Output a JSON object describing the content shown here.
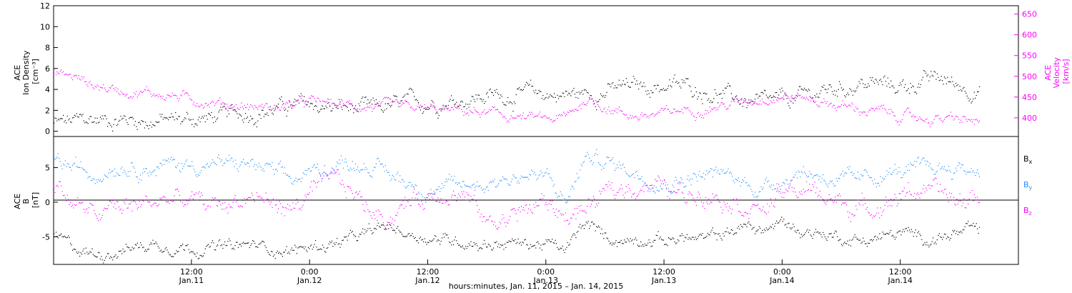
{
  "chart_data": [
    {
      "type": "scatter",
      "panel": "top",
      "ylabel_lines": [
        "ACE",
        "Ion Density",
        "[cm⁻³]"
      ],
      "y2label_lines": [
        "ACE",
        "Velocity",
        "[km/s]"
      ],
      "xlim": [
        -14,
        84
      ],
      "ylim": [
        -0.5,
        12
      ],
      "yticks": [
        0,
        2,
        4,
        6,
        8,
        10,
        12
      ],
      "y2lim": [
        355,
        670
      ],
      "y2ticks": [
        400,
        450,
        500,
        550,
        600,
        650
      ],
      "grid": false,
      "colors": {
        "density": "#000000",
        "velocity": "#ff00ff"
      },
      "series": [
        {
          "axis": "left",
          "color": "#000000",
          "spread": 0.9,
          "x": [
            -14,
            -12,
            -10,
            -8,
            -6,
            -4,
            -2,
            0,
            2,
            4,
            6,
            8,
            10,
            12,
            14,
            16,
            18,
            20,
            22,
            24,
            26,
            28,
            30,
            32,
            34,
            36,
            38,
            40,
            42,
            44,
            46,
            48,
            50,
            52,
            54,
            56,
            58,
            60,
            62,
            64,
            66,
            68,
            70,
            72,
            74,
            76,
            78,
            80
          ],
          "y": [
            0.8,
            0.9,
            1.1,
            1.2,
            1.2,
            1.0,
            1.1,
            1.2,
            1.3,
            1.5,
            1.9,
            2.1,
            2.4,
            2.5,
            2.3,
            2.2,
            2.0,
            2.3,
            2.6,
            2.8,
            3.0,
            3.2,
            3.4,
            3.5,
            3.6,
            3.6,
            3.5,
            3.6,
            3.9,
            4.2,
            4.3,
            4.4,
            4.3,
            4.0,
            3.5,
            3.0,
            2.6,
            2.8,
            3.3,
            3.8,
            4.2,
            4.6,
            4.5,
            4.3,
            4.8,
            5.0,
            4.4,
            4.0
          ]
        },
        {
          "axis": "right",
          "color": "#ff00ff",
          "spread": 14,
          "x": [
            -14,
            -12,
            -10,
            -8,
            -6,
            -4,
            -2,
            0,
            2,
            4,
            6,
            8,
            10,
            12,
            14,
            16,
            18,
            20,
            22,
            24,
            26,
            28,
            30,
            32,
            34,
            36,
            38,
            40,
            42,
            44,
            46,
            48,
            50,
            52,
            54,
            56,
            58,
            60,
            62,
            64,
            66,
            68,
            70,
            72,
            74,
            76,
            78,
            80
          ],
          "y": [
            510,
            500,
            480,
            470,
            465,
            460,
            455,
            445,
            440,
            432,
            428,
            425,
            432,
            438,
            435,
            430,
            428,
            425,
            422,
            420,
            418,
            416,
            410,
            405,
            400,
            396,
            400,
            445,
            430,
            410,
            405,
            410,
            420,
            425,
            430,
            440,
            450,
            455,
            450,
            440,
            430,
            420,
            415,
            405,
            400,
            398,
            395,
            390
          ]
        }
      ]
    },
    {
      "type": "scatter",
      "panel": "bottom",
      "ylabel_lines": [
        "ACE",
        "B",
        "[nT]"
      ],
      "xlim": [
        -14,
        84
      ],
      "ylim": [
        -9,
        9.5
      ],
      "yticks": [
        -5,
        0,
        5
      ],
      "grid": false,
      "zero_line": true,
      "legend": [
        {
          "label": "B",
          "sub": "x",
          "color": "#000000"
        },
        {
          "label": "B",
          "sub": "y",
          "color": "#1e90ff"
        },
        {
          "label": "B",
          "sub": "z",
          "color": "#ff00ff"
        }
      ],
      "series": [
        {
          "name": "Bx",
          "color": "#000000",
          "spread": 1.0,
          "x": [
            -14,
            -12,
            -10,
            -8,
            -6,
            -4,
            -2,
            0,
            2,
            4,
            6,
            8,
            10,
            12,
            14,
            16,
            18,
            20,
            22,
            24,
            26,
            28,
            30,
            32,
            34,
            36,
            38,
            40,
            42,
            44,
            46,
            48,
            50,
            52,
            54,
            56,
            58,
            60,
            62,
            64,
            66,
            68,
            70,
            72,
            74,
            76,
            78,
            80
          ],
          "y": [
            -5,
            -6.5,
            -7.5,
            -7,
            -6.5,
            -6,
            -6.2,
            -6.5,
            -6.5,
            -6.5,
            -6.2,
            -6.5,
            -7,
            -6.5,
            -6,
            -5.5,
            -4.5,
            -3.5,
            -4.5,
            -5,
            -5.5,
            -5.5,
            -6,
            -5.8,
            -6,
            -6,
            -7,
            -3,
            -5,
            -5.5,
            -5,
            -5.5,
            -5,
            -5.5,
            -4.5,
            -3.5,
            -4,
            -3,
            -4,
            -4.5,
            -5,
            -5.5,
            -5,
            -4.5,
            -5,
            -5,
            -4.5,
            -4
          ]
        },
        {
          "name": "By",
          "color": "#1e90ff",
          "spread": 1.3,
          "x": [
            -14,
            -12,
            -10,
            -8,
            -6,
            -4,
            -2,
            0,
            2,
            4,
            6,
            8,
            10,
            12,
            14,
            16,
            18,
            20,
            22,
            24,
            26,
            28,
            30,
            32,
            34,
            36,
            38,
            40,
            42,
            44,
            46,
            48,
            50,
            52,
            54,
            56,
            58,
            60,
            62,
            64,
            66,
            68,
            70,
            72,
            74,
            76,
            78,
            80
          ],
          "y": [
            6,
            5,
            4,
            5.5,
            5.5,
            5,
            5.5,
            5.5,
            5.5,
            5.5,
            5.5,
            4.5,
            3,
            4,
            5,
            6,
            5.5,
            4,
            3,
            2,
            2,
            2.5,
            3,
            3.5,
            4,
            3.5,
            0,
            6.5,
            6,
            5,
            4,
            3,
            3.5,
            4,
            4,
            3,
            2,
            3.5,
            4.5,
            4,
            3,
            3,
            4,
            4.5,
            4.5,
            5,
            5,
            4.5
          ]
        },
        {
          "name": "Bz",
          "color": "#ff00ff",
          "spread": 1.6,
          "x": [
            -14,
            -12,
            -10,
            -8,
            -6,
            -4,
            -2,
            0,
            2,
            4,
            6,
            8,
            10,
            12,
            14,
            16,
            18,
            20,
            22,
            24,
            26,
            28,
            30,
            32,
            34,
            36,
            38,
            40,
            42,
            44,
            46,
            48,
            50,
            52,
            54,
            56,
            58,
            60,
            62,
            64,
            66,
            68,
            70,
            72,
            74,
            76,
            78,
            80
          ],
          "y": [
            3,
            0,
            -2,
            -1,
            -0.5,
            0,
            0.5,
            0,
            -0.5,
            0,
            1,
            0,
            -1,
            1,
            3,
            2,
            -1,
            -2,
            0,
            1,
            2,
            1,
            -3,
            -2,
            -1,
            0,
            -2,
            -1,
            1,
            2,
            3,
            2,
            1,
            2,
            1,
            0,
            -1,
            1,
            2,
            1,
            0,
            -1,
            0,
            1,
            2,
            1,
            0,
            1
          ]
        }
      ]
    }
  ],
  "x_axis": {
    "ticks": [
      {
        "x": 0,
        "top": "12:00",
        "bottom": "Jan.11"
      },
      {
        "x": 12,
        "top": "0:00",
        "bottom": "Jan.12"
      },
      {
        "x": 24,
        "top": "12:00",
        "bottom": "Jan.12"
      },
      {
        "x": 36,
        "top": "0:00",
        "bottom": "Jan.13"
      },
      {
        "x": 48,
        "top": "12:00",
        "bottom": "Jan.13"
      },
      {
        "x": 60,
        "top": "0:00",
        "bottom": "Jan.14"
      },
      {
        "x": 72,
        "top": "12:00",
        "bottom": "Jan.14"
      }
    ],
    "title": "hours:minutes, Jan. 11, 2015 – Jan. 14, 2015"
  }
}
